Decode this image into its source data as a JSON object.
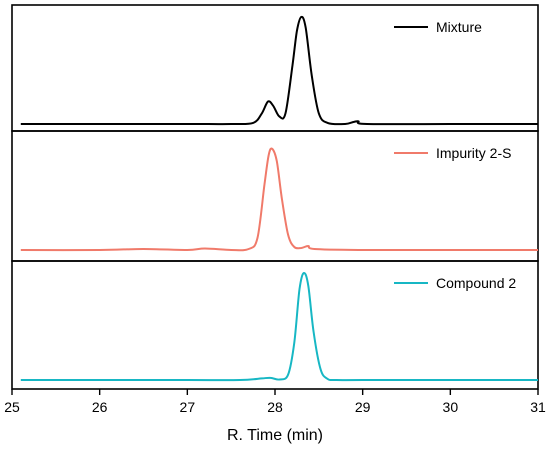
{
  "chart_data": {
    "type": "line",
    "layout": "stacked-panels",
    "xlabel": "R. Time (min)",
    "xlim": [
      25,
      31
    ],
    "xticks": [
      "25",
      "26",
      "27",
      "28",
      "29",
      "30",
      "31"
    ],
    "panels": [
      {
        "legend": "top-right",
        "series": [
          {
            "name": "Mixture",
            "color": "#000000",
            "x": [
              25.1,
              26.0,
              27.0,
              27.5,
              27.75,
              27.85,
              27.92,
              27.98,
              28.05,
              28.12,
              28.2,
              28.25,
              28.3,
              28.35,
              28.42,
              28.5,
              28.6,
              28.8,
              28.9,
              28.95,
              29.05,
              30.0,
              31.0
            ],
            "y": [
              0.0,
              0.0,
              0.0,
              0.0,
              0.01,
              0.1,
              0.21,
              0.17,
              0.07,
              0.1,
              0.55,
              0.87,
              1.0,
              0.9,
              0.45,
              0.1,
              0.01,
              0.0,
              0.02,
              0.025,
              0.0,
              0.0,
              0.0
            ]
          }
        ]
      },
      {
        "legend": "top-right",
        "series": [
          {
            "name": "Impurity 2-S",
            "color": "#f07a6a",
            "x": [
              25.1,
              26.0,
              26.5,
              27.0,
              27.2,
              27.5,
              27.7,
              27.8,
              27.88,
              27.93,
              27.97,
              28.02,
              28.08,
              28.15,
              28.22,
              28.3,
              28.38,
              28.45,
              29.0,
              30.0,
              31.0
            ],
            "y": [
              0.0,
              0.0,
              0.01,
              0.0,
              0.015,
              0.0,
              0.01,
              0.12,
              0.65,
              0.95,
              1.0,
              0.88,
              0.5,
              0.15,
              0.03,
              0.02,
              0.04,
              0.01,
              0.0,
              0.0,
              0.0
            ]
          }
        ]
      },
      {
        "legend": "top-right",
        "series": [
          {
            "name": "Compound 2",
            "color": "#17b7c4",
            "x": [
              25.1,
              26.0,
              27.0,
              27.6,
              27.85,
              27.95,
              28.05,
              28.15,
              28.22,
              28.28,
              28.33,
              28.38,
              28.44,
              28.52,
              28.6,
              28.7,
              29.0,
              30.0,
              31.0
            ],
            "y": [
              0.0,
              0.0,
              0.0,
              0.0,
              0.015,
              0.02,
              0.005,
              0.05,
              0.35,
              0.85,
              1.0,
              0.88,
              0.45,
              0.1,
              0.01,
              0.0,
              0.0,
              0.0,
              0.0
            ]
          }
        ]
      }
    ]
  }
}
